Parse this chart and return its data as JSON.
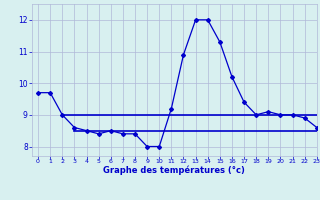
{
  "line1_x": [
    0,
    1,
    2,
    3,
    4,
    5,
    6,
    7,
    8,
    9,
    10,
    11,
    12,
    13,
    14,
    15,
    16,
    17,
    18,
    19,
    20,
    21,
    22,
    23
  ],
  "line1_y": [
    9.7,
    9.7,
    9.0,
    8.6,
    8.5,
    8.4,
    8.5,
    8.4,
    8.4,
    8.0,
    8.0,
    9.2,
    10.9,
    12.0,
    12.0,
    11.3,
    10.2,
    9.4,
    9.0,
    9.1,
    9.0,
    9.0,
    8.9,
    8.6
  ],
  "line2_x": [
    2,
    23
  ],
  "line2_y": [
    9.0,
    9.0
  ],
  "line3_x": [
    3,
    23
  ],
  "line3_y": [
    8.5,
    8.5
  ],
  "line_color": "#0000cc",
  "bg_color": "#d8f0f0",
  "grid_color": "#b0b8d8",
  "xlabel": "Graphe des températures (°c)",
  "xlim": [
    -0.5,
    23
  ],
  "ylim": [
    7.7,
    12.5
  ],
  "yticks": [
    8,
    9,
    10,
    11,
    12
  ],
  "xticks": [
    0,
    1,
    2,
    3,
    4,
    5,
    6,
    7,
    8,
    9,
    10,
    11,
    12,
    13,
    14,
    15,
    16,
    17,
    18,
    19,
    20,
    21,
    22,
    23
  ]
}
